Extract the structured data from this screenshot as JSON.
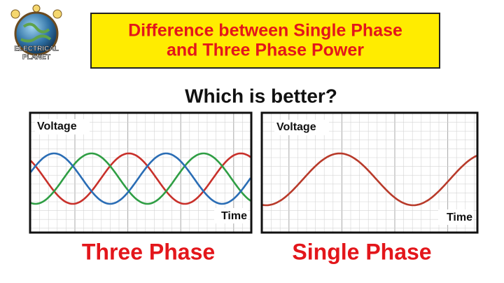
{
  "logo": {
    "line1": "ELECTRICAL",
    "line2": "PLANET"
  },
  "header": {
    "title_line1": "Difference between Single Phase",
    "title_line2": "and Three Phase Power"
  },
  "question": "Which is better?",
  "panels": [
    {
      "y_label": "Voltage",
      "x_label": "Time",
      "caption": "Three Phase"
    },
    {
      "y_label": "Voltage",
      "x_label": "Time",
      "caption": "Single Phase"
    }
  ]
}
